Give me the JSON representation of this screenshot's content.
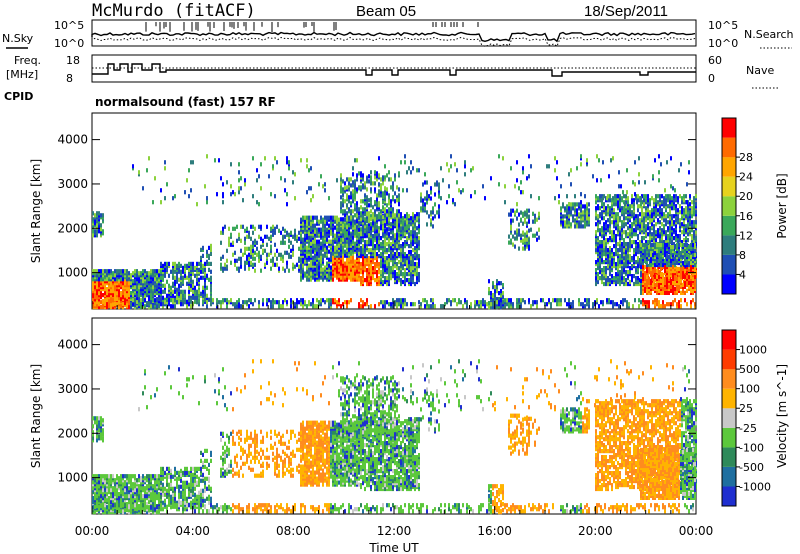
{
  "header": {
    "station": "McMurdo (fitACF)",
    "beam": "Beam 05",
    "date": "18/Sep/2011"
  },
  "status_panel": {
    "nsky_label": "N.Sky",
    "nsky_ticks": [
      "10^5",
      "10^0"
    ],
    "nsearch_label": "N.Search",
    "nsearch_ticks": [
      "10^5",
      "10^0"
    ],
    "freq_label_1": "Freq.",
    "freq_label_2": "[MHz]",
    "freq_ticks": [
      "18",
      "8"
    ],
    "nave_label": "Nave",
    "nave_ticks": [
      "60",
      "0"
    ],
    "cpid_label": "CPID",
    "cpid_text": "normalsound (fast) 157 RF"
  },
  "chart_data": [
    {
      "type": "heatmap",
      "name": "power-panel",
      "ylabel": "Slant Range [km]",
      "y_ticks": [
        "1000",
        "2000",
        "3000",
        "4000"
      ],
      "ylim": [
        180,
        4600
      ],
      "colorbar_label": "Power [dB]",
      "colorbar_ticks": [
        "4",
        "8",
        "12",
        "16",
        "20",
        "24",
        "28"
      ],
      "colors": [
        "#0000ff",
        "#1f4fb4",
        "#2e7d7d",
        "#3aa85a",
        "#8cd23c",
        "#e6d21e",
        "#ffa500",
        "#ff6a00",
        "#ff0000"
      ]
    },
    {
      "type": "heatmap",
      "name": "velocity-panel",
      "ylabel": "Slant Range [km]",
      "y_ticks": [
        "1000",
        "2000",
        "3000",
        "4000"
      ],
      "ylim": [
        180,
        4600
      ],
      "colorbar_label": "Velocity [m s^-1]",
      "colorbar_ticks": [
        "1000",
        "500",
        "100",
        "25",
        "-25",
        "-100",
        "-500",
        "-1000"
      ],
      "colors": [
        "#1f2fd0",
        "#1f6fa0",
        "#2e8a5a",
        "#5cc83c",
        "#c8c8c8",
        "#ffb400",
        "#ff8c1e",
        "#ff3c00",
        "#ff0000"
      ]
    }
  ],
  "time_axis": {
    "ticks": [
      "00:00",
      "04:00",
      "08:00",
      "12:00",
      "16:00",
      "20:00",
      "00:00"
    ],
    "xlabel": "Time UT"
  }
}
